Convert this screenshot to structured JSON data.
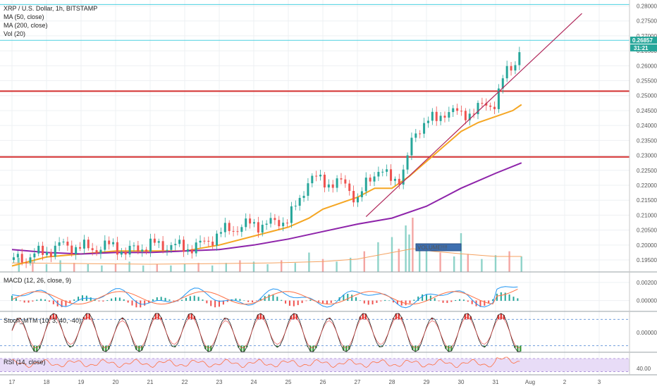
{
  "legend": {
    "symbol": "XRP / U.S. Dollar, 1h, BITSTAMP",
    "ma50": "MA (50, close)",
    "ma200": "MA (200, close)",
    "vol": "Vol (20)",
    "macd": "MACD (12, 26, close, 9)",
    "stoch": "Stoch_MTM (10, 3, 40, -40)",
    "rsi": "RSI (14, close)"
  },
  "annotation": {
    "volume_box": "VOLUME!!!!"
  },
  "price_flags": {
    "last_price": "0.26857",
    "countdown": "31:21"
  },
  "colors": {
    "up": "#26a69a",
    "down": "#ef5350",
    "ma50": "#f5a623",
    "ma200": "#8e24aa",
    "hline": "#d32f2f",
    "trendline": "#b0285a",
    "cyanline": "#4dd0e1",
    "macd_line": "#2196f3",
    "signal_line": "#ff7043",
    "rsi_line": "#ff7043",
    "rsi_band": "#e8dcf7",
    "stoch_fill_up": "#e53935",
    "stoch_fill_down": "#43a047"
  },
  "chart_data": {
    "type": "line",
    "title": "XRP / U.S. Dollar, 1h, BITSTAMP",
    "x_ticks": [
      "17",
      "18",
      "19",
      "20",
      "21",
      "22",
      "23",
      "24",
      "25",
      "26",
      "27",
      "28",
      "29",
      "30",
      "31",
      "Aug",
      "2",
      "3"
    ],
    "price_axis": {
      "ylim": [
        0.191,
        0.282
      ],
      "tick_labels": [
        "0.28000",
        "0.27500",
        "0.27000",
        "0.26500",
        "0.26000",
        "0.25500",
        "0.25000",
        "0.24500",
        "0.24000",
        "0.23500",
        "0.23000",
        "0.22500",
        "0.22000",
        "0.21500",
        "0.21000",
        "0.20500",
        "0.20000",
        "0.19500"
      ],
      "tick_values": [
        0.28,
        0.275,
        0.27,
        0.265,
        0.26,
        0.255,
        0.25,
        0.245,
        0.24,
        0.235,
        0.23,
        0.225,
        0.22,
        0.215,
        0.21,
        0.205,
        0.2,
        0.195
      ]
    },
    "price_path": {
      "x_days": [
        17.0,
        17.5,
        18.0,
        18.5,
        19.0,
        19.5,
        20.0,
        20.3,
        20.6,
        21.0,
        21.5,
        22.0,
        22.5,
        23.0,
        23.5,
        24.0,
        24.5,
        25.0,
        25.3,
        25.6,
        26.0,
        26.3,
        26.7,
        27.0,
        27.3,
        27.6,
        28.0,
        28.3,
        28.6,
        29.0,
        29.3,
        29.6,
        30.0,
        30.3,
        30.6,
        31.0,
        31.2,
        31.4,
        31.6,
        31.75
      ],
      "close": [
        0.195,
        0.196,
        0.198,
        0.2,
        0.199,
        0.199,
        0.2,
        0.197,
        0.199,
        0.2,
        0.2,
        0.199,
        0.2,
        0.204,
        0.206,
        0.207,
        0.207,
        0.209,
        0.214,
        0.223,
        0.221,
        0.221,
        0.22,
        0.215,
        0.221,
        0.226,
        0.221,
        0.224,
        0.235,
        0.243,
        0.241,
        0.246,
        0.243,
        0.245,
        0.246,
        0.248,
        0.255,
        0.259,
        0.262,
        0.268
      ]
    },
    "series": [
      {
        "name": "MA (50, close)",
        "x_days": [
          17.0,
          18.0,
          19.0,
          20.0,
          21.0,
          22.0,
          23.0,
          24.0,
          25.0,
          25.6,
          26.0,
          26.5,
          27.0,
          27.5,
          28.0,
          28.5,
          29.0,
          29.5,
          30.0,
          30.5,
          31.0,
          31.5,
          31.75
        ],
        "values": [
          0.193,
          0.196,
          0.197,
          0.198,
          0.198,
          0.198,
          0.2,
          0.203,
          0.206,
          0.209,
          0.212,
          0.214,
          0.216,
          0.219,
          0.219,
          0.223,
          0.228,
          0.233,
          0.238,
          0.241,
          0.243,
          0.245,
          0.247
        ]
      },
      {
        "name": "MA (200, close)",
        "x_days": [
          17.0,
          18.0,
          19.0,
          20.0,
          21.0,
          22.0,
          23.0,
          24.0,
          25.0,
          26.0,
          27.0,
          28.0,
          29.0,
          30.0,
          31.0,
          31.75
        ],
        "values": [
          0.1985,
          0.1975,
          0.197,
          0.1975,
          0.1975,
          0.198,
          0.1985,
          0.2,
          0.202,
          0.2045,
          0.207,
          0.209,
          0.213,
          0.219,
          0.224,
          0.2275
        ]
      }
    ],
    "horizontal_lines": [
      0.2805,
      0.2685,
      0.2515,
      0.2295
    ],
    "trendline": {
      "x_days": [
        27.25,
        33.5
      ],
      "values": [
        0.2095,
        0.2775
      ]
    },
    "volume": {
      "x_days": [
        17.2,
        17.6,
        18.0,
        18.4,
        18.8,
        19.2,
        19.6,
        20.0,
        20.4,
        20.8,
        21.2,
        21.6,
        22.0,
        22.4,
        22.8,
        23.2,
        23.6,
        24.0,
        24.4,
        24.8,
        25.2,
        25.6,
        26.0,
        26.4,
        26.8,
        27.2,
        27.6,
        28.0,
        28.2,
        28.4,
        28.5,
        28.6,
        28.8,
        29.0,
        29.4,
        29.8,
        30.0,
        30.2,
        30.6,
        31.0,
        31.4,
        31.75
      ],
      "values": [
        1.1,
        0.8,
        0.6,
        0.9,
        0.7,
        0.6,
        0.5,
        0.6,
        0.8,
        0.5,
        0.6,
        0.5,
        0.6,
        0.7,
        0.5,
        0.7,
        0.9,
        0.8,
        0.6,
        0.9,
        0.7,
        1.5,
        1.0,
        0.8,
        1.1,
        1.6,
        2.3,
        2.7,
        1.8,
        3.6,
        2.9,
        4.2,
        2.0,
        2.1,
        1.5,
        1.2,
        3.0,
        1.4,
        1.0,
        1.3,
        1.6,
        1.2
      ]
    },
    "volume_ma": {
      "x_days": [
        17.0,
        19.0,
        21.0,
        23.0,
        24.5,
        26.0,
        27.0,
        28.0,
        28.6,
        29.2,
        30.0,
        31.0,
        31.75
      ],
      "values": [
        0.7,
        0.65,
        0.6,
        0.65,
        0.7,
        0.8,
        1.0,
        1.5,
        1.8,
        1.6,
        1.4,
        1.2,
        1.2
      ]
    },
    "macd": {
      "ylim": [
        -0.0012,
        0.003
      ],
      "tick_labels": [
        "0.00200",
        "0.00000"
      ],
      "tick_values": [
        0.002,
        0.0
      ]
    },
    "stoch": {
      "ylim": [
        -60,
        60
      ],
      "tick_labels": [
        "0.00000"
      ],
      "tick_values": [
        0
      ],
      "levels": [
        40,
        -40
      ]
    },
    "rsi": {
      "ylim": [
        20,
        85
      ],
      "tick_labels": [
        "40.00"
      ],
      "tick_values": [
        40
      ],
      "band": [
        30,
        70
      ]
    }
  }
}
